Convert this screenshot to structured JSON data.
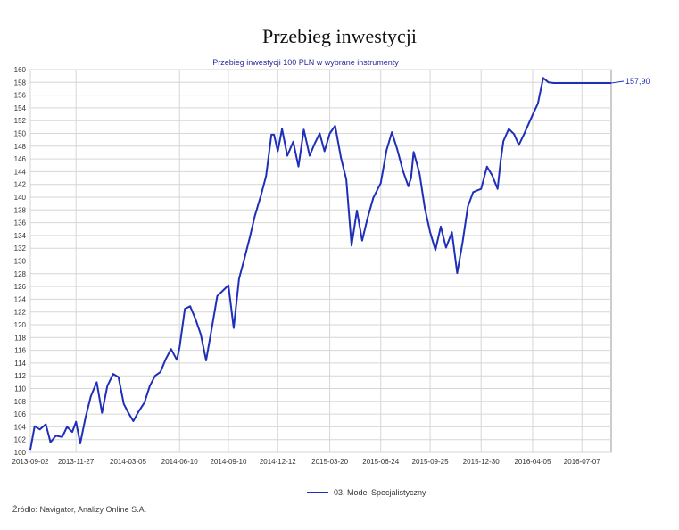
{
  "chart_data": {
    "type": "line",
    "title": "Przebieg inwestycji",
    "subtitle": "Przebieg inwestycji 100 PLN w wybrane instrumenty",
    "xlabel": "",
    "ylabel": "",
    "x_ticks": [
      "2013-09-02",
      "2013-11-27",
      "2014-03-05",
      "2014-06-10",
      "2014-09-10",
      "2014-12-12",
      "2015-03-20",
      "2015-06-24",
      "2015-09-25",
      "2015-12-30",
      "2016-04-05",
      "2016-07-07"
    ],
    "ylim": [
      100,
      160
    ],
    "y_ticks": [
      100,
      102,
      104,
      106,
      108,
      110,
      112,
      114,
      116,
      118,
      120,
      122,
      124,
      126,
      128,
      130,
      132,
      134,
      136,
      138,
      140,
      142,
      144,
      146,
      148,
      150,
      152,
      154,
      156,
      158,
      160
    ],
    "grid": true,
    "legend_position": "bottom",
    "end_label": "157,90",
    "series": [
      {
        "name": "03. Model Specjalistyczny",
        "color": "#1f2fb8",
        "x": [
          "2013-09-02",
          "2013-09-10",
          "2013-09-20",
          "2013-10-01",
          "2013-10-10",
          "2013-10-20",
          "2013-11-01",
          "2013-11-10",
          "2013-11-20",
          "2013-11-27",
          "2013-12-05",
          "2013-12-15",
          "2013-12-25",
          "2014-01-05",
          "2014-01-15",
          "2014-01-25",
          "2014-02-05",
          "2014-02-15",
          "2014-02-25",
          "2014-03-05",
          "2014-03-15",
          "2014-03-25",
          "2014-04-05",
          "2014-04-15",
          "2014-04-25",
          "2014-05-05",
          "2014-05-15",
          "2014-05-25",
          "2014-06-05",
          "2014-06-10",
          "2014-06-20",
          "2014-06-30",
          "2014-07-10",
          "2014-07-20",
          "2014-07-30",
          "2014-08-10",
          "2014-08-20",
          "2014-08-30",
          "2014-09-10",
          "2014-09-20",
          "2014-09-30",
          "2014-10-10",
          "2014-10-20",
          "2014-10-30",
          "2014-11-10",
          "2014-11-20",
          "2014-11-30",
          "2014-12-05",
          "2014-12-12",
          "2014-12-20",
          "2014-12-30",
          "2015-01-10",
          "2015-01-20",
          "2015-01-30",
          "2015-02-10",
          "2015-02-20",
          "2015-03-01",
          "2015-03-10",
          "2015-03-20",
          "2015-03-30",
          "2015-04-10",
          "2015-04-20",
          "2015-04-30",
          "2015-05-10",
          "2015-05-20",
          "2015-05-30",
          "2015-06-10",
          "2015-06-24",
          "2015-07-05",
          "2015-07-15",
          "2015-07-25",
          "2015-08-05",
          "2015-08-15",
          "2015-08-20",
          "2015-08-25",
          "2015-09-05",
          "2015-09-15",
          "2015-09-25",
          "2015-10-05",
          "2015-10-15",
          "2015-10-25",
          "2015-11-05",
          "2015-11-15",
          "2015-11-25",
          "2015-12-05",
          "2015-12-15",
          "2015-12-30",
          "2016-01-10",
          "2016-01-20",
          "2016-01-30",
          "2016-02-05",
          "2016-02-10",
          "2016-02-20",
          "2016-03-01",
          "2016-03-10",
          "2016-03-20",
          "2016-04-05",
          "2016-04-15",
          "2016-04-25",
          "2016-05-05",
          "2016-05-15",
          "2016-05-25",
          "2016-06-05",
          "2016-06-15",
          "2016-06-24",
          "2016-06-30",
          "2016-07-07",
          "2016-07-17",
          "2016-07-27",
          "2016-08-05",
          "2016-08-15",
          "2016-08-25",
          "2016-08-31"
        ],
        "values": [
          100.4,
          104.1,
          103.6,
          104.4,
          101.6,
          102.6,
          102.4,
          104.0,
          103.2,
          104.8,
          101.4,
          105.5,
          108.8,
          111.0,
          106.2,
          110.4,
          112.3,
          111.8,
          107.6,
          106.3,
          104.9,
          106.4,
          107.8,
          110.4,
          112.0,
          112.6,
          114.6,
          116.2,
          114.5,
          116.4,
          122.5,
          122.9,
          120.9,
          118.5,
          114.4,
          119.6,
          124.5,
          125.3,
          126.2,
          119.5,
          127.2,
          130.3,
          133.6,
          137.1,
          140.2,
          143.3,
          149.8,
          149.8,
          147.2,
          150.7,
          146.5,
          148.7,
          144.8,
          150.6,
          146.5,
          148.5,
          150.0,
          147.2,
          150.0,
          151.2,
          146.2,
          142.8,
          132.4,
          137.9,
          133.2,
          136.7,
          139.9,
          142.2,
          147.4,
          150.2,
          147.5,
          144.1,
          141.7,
          143.0,
          147.1,
          143.7,
          138.3,
          134.5,
          131.7,
          135.4,
          132.1,
          134.5,
          128.1,
          132.9,
          138.5,
          140.8,
          141.3,
          144.8,
          143.4,
          141.3,
          145.8,
          148.8,
          150.7,
          149.9,
          148.2,
          149.9,
          152.9,
          154.7,
          158.7,
          158.0,
          157.9,
          157.9,
          157.9,
          157.9,
          157.9,
          157.9,
          157.9,
          157.9,
          157.9,
          157.9,
          157.9,
          157.9,
          157.9
        ]
      }
    ]
  },
  "legend": {
    "label": "03. Model Specjalistyczny"
  },
  "source_note": "Źródło: Navigator, Analizy Online S.A."
}
